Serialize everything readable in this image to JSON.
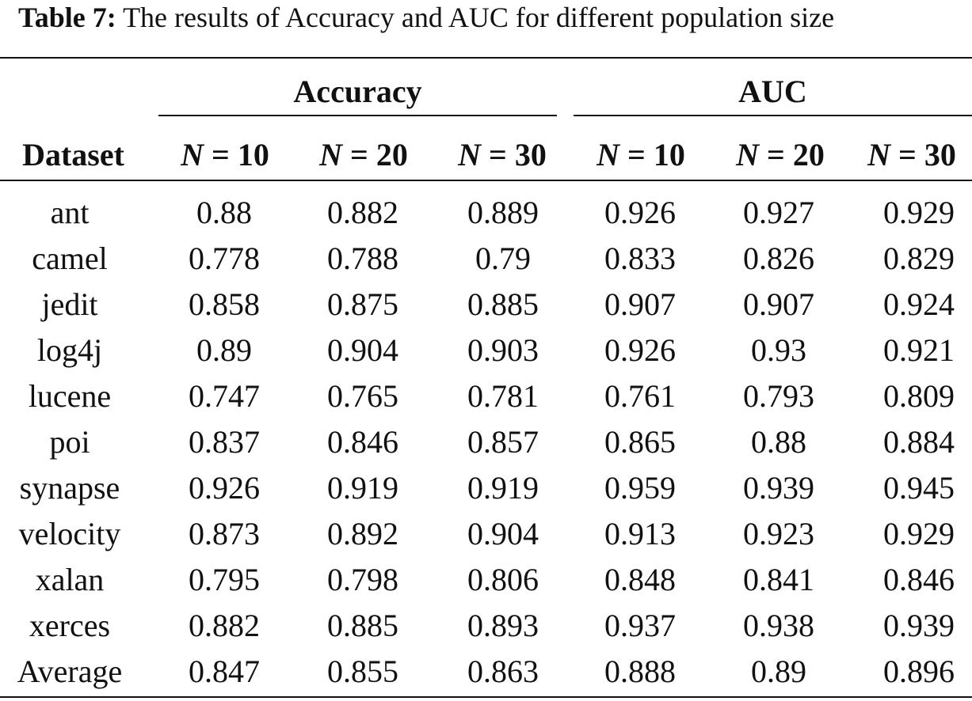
{
  "caption": {
    "label": "Table 7:",
    "text": "The results of Accuracy and AUC for different population size"
  },
  "header": {
    "group_accuracy": "Accuracy",
    "group_auc": "AUC",
    "dataset": "Dataset",
    "n_symbol": "N",
    "n_values": [
      "= 10",
      "= 20",
      "= 30",
      "= 10",
      "= 20",
      "= 30"
    ]
  },
  "rows": [
    {
      "dataset": "ant",
      "values": [
        "0.88",
        "0.882",
        "0.889",
        "0.926",
        "0.927",
        "0.929"
      ]
    },
    {
      "dataset": "camel",
      "values": [
        "0.778",
        "0.788",
        "0.79",
        "0.833",
        "0.826",
        "0.829"
      ]
    },
    {
      "dataset": "jedit",
      "values": [
        "0.858",
        "0.875",
        "0.885",
        "0.907",
        "0.907",
        "0.924"
      ]
    },
    {
      "dataset": "log4j",
      "values": [
        "0.89",
        "0.904",
        "0.903",
        "0.926",
        "0.93",
        "0.921"
      ]
    },
    {
      "dataset": "lucene",
      "values": [
        "0.747",
        "0.765",
        "0.781",
        "0.761",
        "0.793",
        "0.809"
      ]
    },
    {
      "dataset": "poi",
      "values": [
        "0.837",
        "0.846",
        "0.857",
        "0.865",
        "0.88",
        "0.884"
      ]
    },
    {
      "dataset": "synapse",
      "values": [
        "0.926",
        "0.919",
        "0.919",
        "0.959",
        "0.939",
        "0.945"
      ]
    },
    {
      "dataset": "velocity",
      "values": [
        "0.873",
        "0.892",
        "0.904",
        "0.913",
        "0.923",
        "0.929"
      ]
    },
    {
      "dataset": "xalan",
      "values": [
        "0.795",
        "0.798",
        "0.806",
        "0.848",
        "0.841",
        "0.846"
      ]
    },
    {
      "dataset": "xerces",
      "values": [
        "0.882",
        "0.885",
        "0.893",
        "0.937",
        "0.938",
        "0.939"
      ]
    },
    {
      "dataset": "Average",
      "values": [
        "0.847",
        "0.855",
        "0.863",
        "0.888",
        "0.89",
        "0.896"
      ]
    }
  ]
}
